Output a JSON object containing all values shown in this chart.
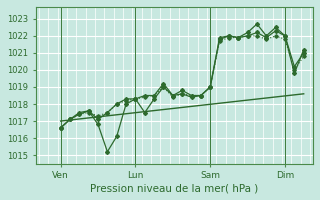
{
  "xlabel": "Pression niveau de la mer( hPa )",
  "bg_color": "#c8e8e0",
  "grid_color": "#b0d8d0",
  "axis_color": "#2d6a2d",
  "dark_green": "#2d6a2d",
  "mid_green": "#2d7a2d",
  "ylim": [
    1014.5,
    1023.7
  ],
  "xlim": [
    -8,
    170
  ],
  "yticks": [
    1015,
    1016,
    1017,
    1018,
    1019,
    1020,
    1021,
    1022,
    1023
  ],
  "day_positions": [
    8,
    56,
    104,
    152
  ],
  "day_labels": [
    "Ven",
    "Lun",
    "Sam",
    "Dim"
  ],
  "series_a": {
    "x": [
      8,
      14,
      20,
      26,
      32,
      38,
      44,
      50,
      56,
      62,
      68,
      74,
      80,
      86,
      92,
      98,
      104,
      110,
      116,
      122,
      128,
      134,
      140,
      146,
      152,
      158,
      164
    ],
    "y": [
      1016.6,
      1017.1,
      1017.5,
      1017.6,
      1016.8,
      1015.2,
      1016.1,
      1018.0,
      1018.3,
      1017.5,
      1018.3,
      1019.0,
      1018.5,
      1018.6,
      1018.4,
      1018.5,
      1019.0,
      1021.9,
      1022.0,
      1021.9,
      1022.2,
      1022.7,
      1022.0,
      1022.5,
      1022.0,
      1019.8,
      1021.2
    ]
  },
  "series_b": {
    "x": [
      8,
      14,
      20,
      26,
      32,
      38,
      44,
      50,
      56,
      62,
      68,
      74,
      80,
      86,
      92,
      98,
      104,
      110,
      116,
      122,
      128,
      134,
      140,
      146,
      152,
      158,
      164
    ],
    "y": [
      1016.6,
      1017.1,
      1017.4,
      1017.6,
      1017.1,
      1017.5,
      1018.0,
      1018.3,
      1018.3,
      1018.5,
      1018.5,
      1019.2,
      1018.5,
      1018.8,
      1018.5,
      1018.5,
      1019.0,
      1021.8,
      1022.0,
      1021.9,
      1022.0,
      1022.2,
      1021.9,
      1022.3,
      1022.0,
      1020.2,
      1021.0
    ]
  },
  "series_c": {
    "x": [
      8,
      14,
      20,
      26,
      32,
      38,
      44,
      50,
      56,
      62,
      68,
      74,
      80,
      86,
      92,
      98,
      104,
      110,
      116,
      122,
      128,
      134,
      140,
      146,
      152,
      158,
      164
    ],
    "y": [
      1016.6,
      1017.1,
      1017.4,
      1017.5,
      1017.3,
      1017.5,
      1018.0,
      1018.2,
      1018.3,
      1018.4,
      1018.5,
      1019.0,
      1018.4,
      1018.6,
      1018.5,
      1018.5,
      1019.0,
      1021.7,
      1021.9,
      1021.9,
      1022.0,
      1022.0,
      1021.8,
      1022.0,
      1021.8,
      1020.0,
      1020.8
    ]
  },
  "series_trend": {
    "x": [
      8,
      164
    ],
    "y": [
      1017.0,
      1018.6
    ]
  }
}
